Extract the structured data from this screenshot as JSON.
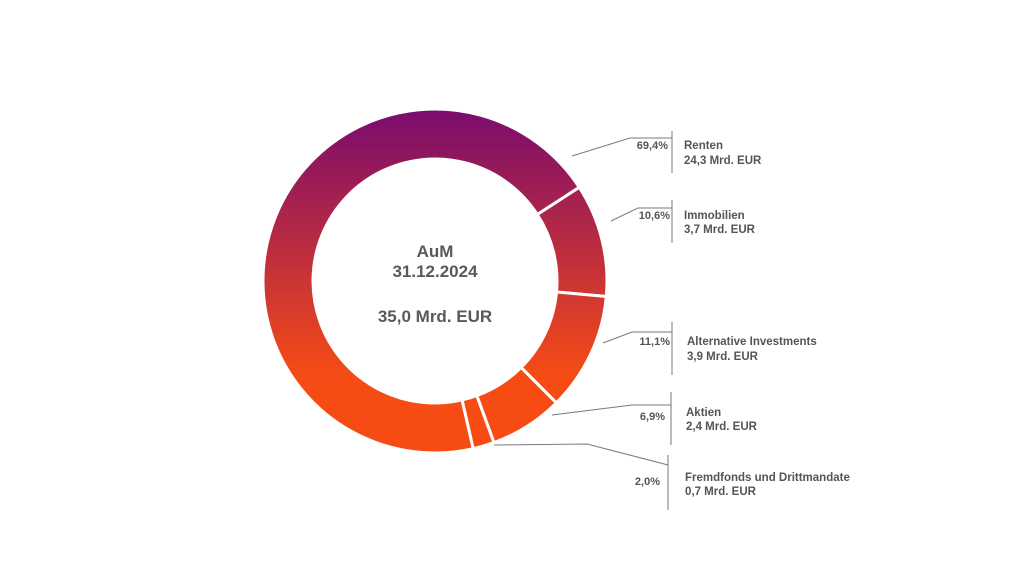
{
  "chart_data": {
    "type": "pie",
    "variant": "donut",
    "center": {
      "title": "AuM",
      "date": "31.12.2024",
      "total": "35,0 Mrd. EUR"
    },
    "segments": [
      {
        "name": "Renten",
        "percent": 69.4,
        "percent_label": "69,4%",
        "value_label": "24,3 Mrd. EUR"
      },
      {
        "name": "Immobilien",
        "percent": 10.6,
        "percent_label": "10,6%",
        "value_label": "3,7 Mrd. EUR"
      },
      {
        "name": "Alternative Investments",
        "percent": 11.1,
        "percent_label": "11,1%",
        "value_label": "3,9 Mrd. EUR"
      },
      {
        "name": "Aktien",
        "percent": 6.9,
        "percent_label": "6,9%",
        "value_label": "2,4 Mrd. EUR"
      },
      {
        "name": "Fremdfonds und Drittmandate",
        "percent": 2.0,
        "percent_label": "2,0%",
        "value_label": "0,7 Mrd. EUR"
      }
    ],
    "colors": {
      "gradient_top": "#7a0c6e",
      "gradient_mid": "#c2303a",
      "gradient_bottom": "#f64c14",
      "text": "#555555"
    }
  }
}
